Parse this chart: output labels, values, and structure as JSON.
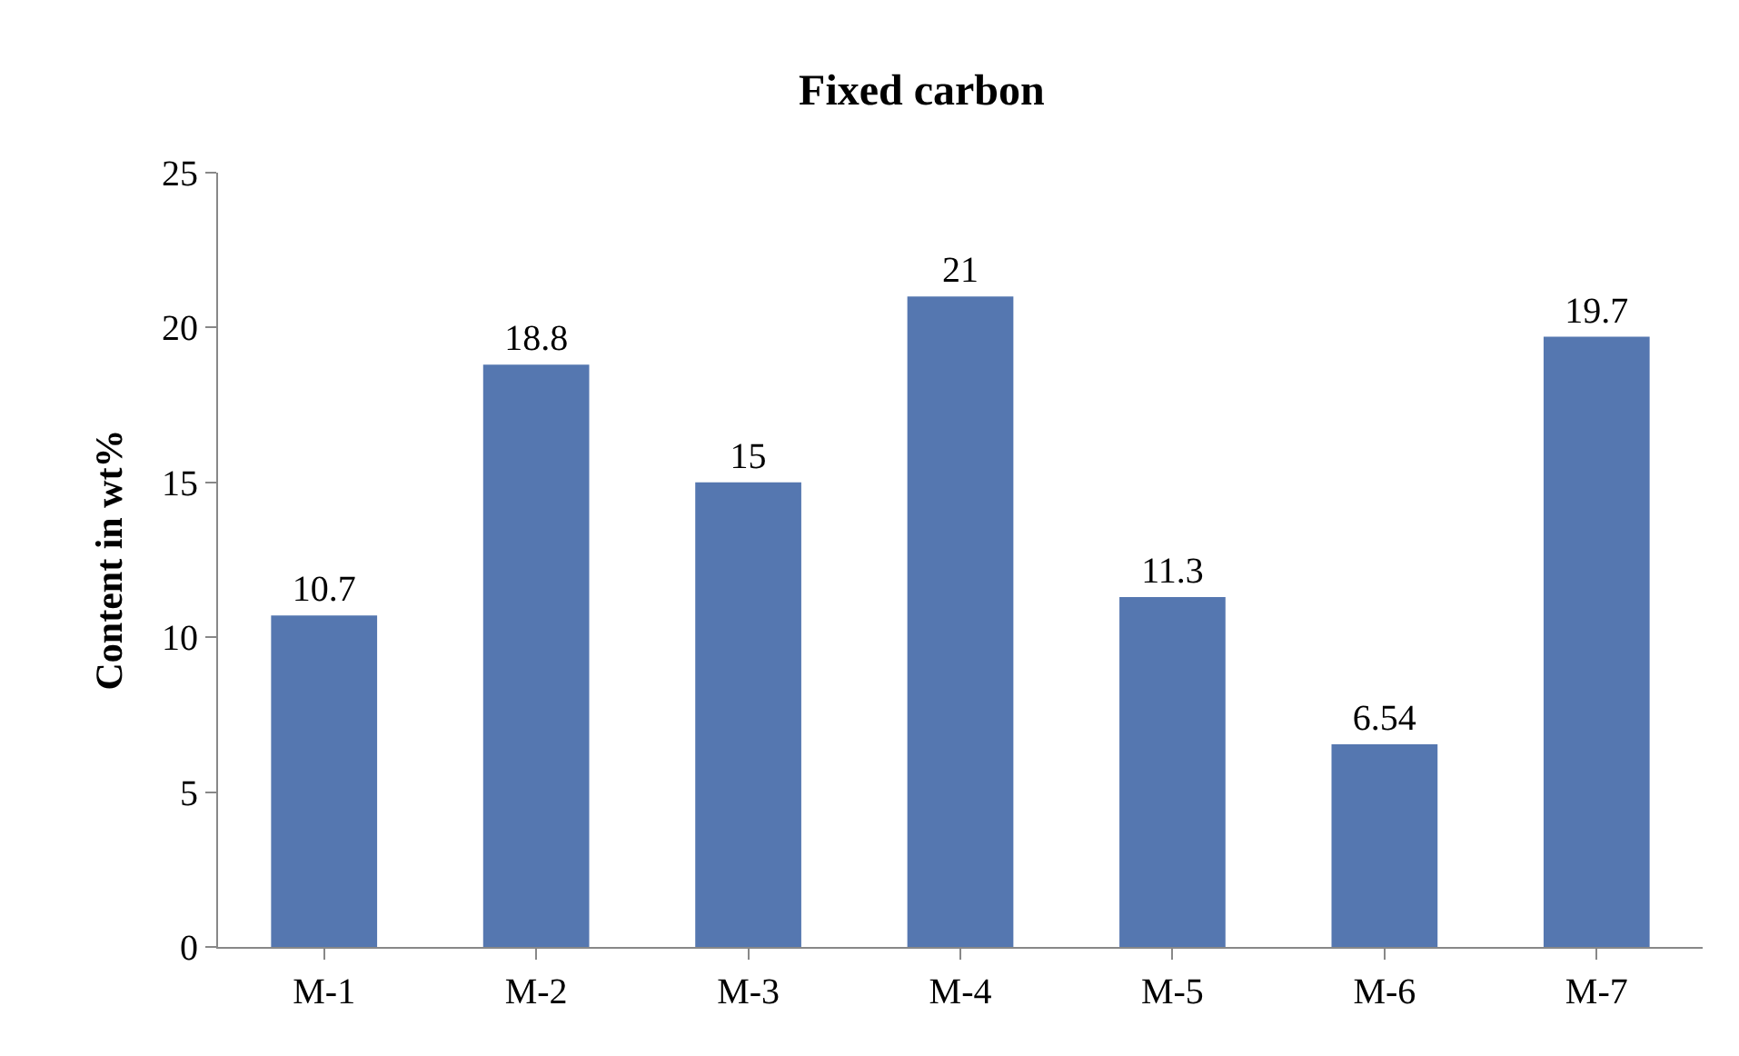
{
  "chart_data": {
    "type": "bar",
    "title": "Fixed carbon",
    "ylabel": "Content in wt%",
    "categories": [
      "M-1",
      "M-2",
      "M-3",
      "M-4",
      "M-5",
      "M-6",
      "M-7"
    ],
    "values": [
      10.7,
      18.8,
      15,
      21,
      11.3,
      6.54,
      19.7
    ],
    "color": "#5577b0",
    "ylim": [
      0,
      25
    ],
    "yticks": [
      0,
      5,
      10,
      15,
      20,
      25
    ],
    "data_labels": true,
    "legend": false
  }
}
